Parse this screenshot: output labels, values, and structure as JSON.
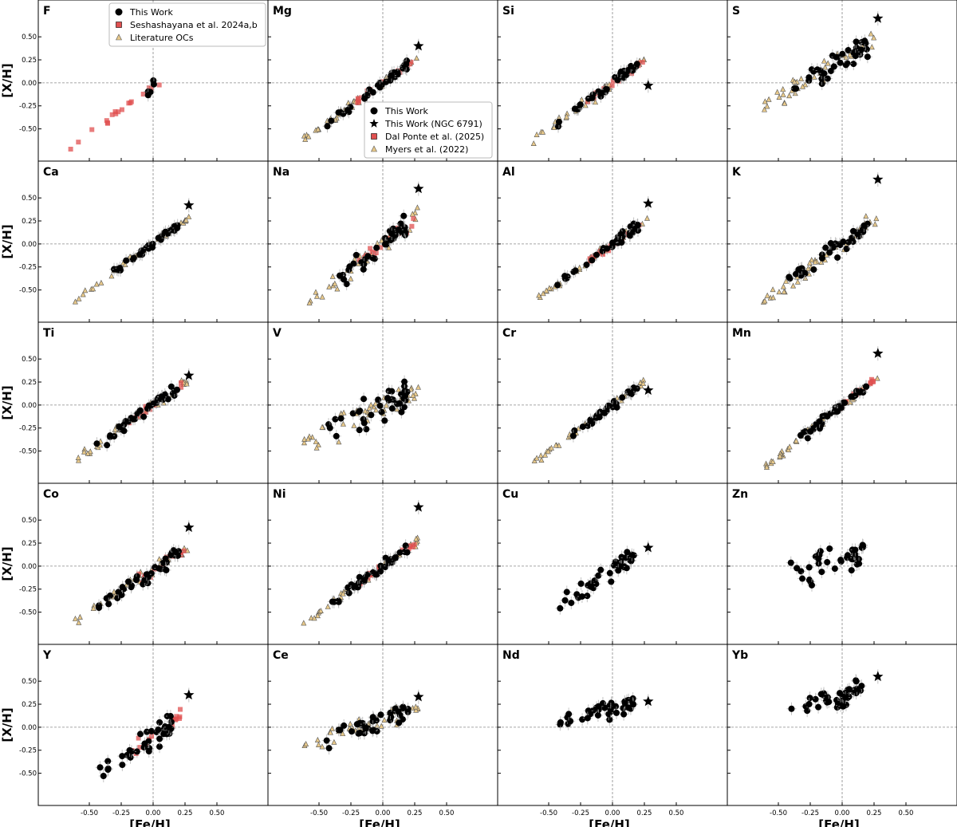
{
  "chart_data": {
    "type": "scatter",
    "xlabel": "[Fe/H]",
    "ylabel": "[X/H]",
    "xlim": [
      -0.9,
      0.9
    ],
    "ylim": [
      -0.85,
      0.9
    ],
    "xticks": [
      -0.5,
      -0.25,
      0.0,
      0.25,
      0.5
    ],
    "xtick_labels": [
      "-0.50",
      "-0.25",
      "0.00",
      "0.25",
      "0.50"
    ],
    "yticks": [
      0.5,
      0.25,
      0.0,
      -0.25,
      -0.5
    ],
    "ytick_labels": [
      "0.50",
      "0.25",
      "0.00",
      "-0.25",
      "-0.50"
    ],
    "colors": {
      "this_work": "#000000",
      "dal_ponte": "#e05050",
      "myers": "#e8c98a",
      "myers_edge": "#555555",
      "errorbar": "#aaaaaa"
    },
    "legend_a": {
      "location": "top-right of F panel",
      "entries": [
        "This Work",
        "Seshashayana et al. 2024a,b",
        "Literature OCs"
      ]
    },
    "legend_b": {
      "location": "bottom-right of Mg panel",
      "entries": [
        "This Work",
        "This Work (NGC 6791)",
        "Dal Ponte et al. (2025)",
        "Myers et al. (2022)"
      ]
    },
    "panels": [
      {
        "element": "F",
        "star": null,
        "slope": 1.0,
        "spread": 0.1,
        "offset": -0.05,
        "red": true,
        "myers": false,
        "black": true,
        "redrange": [
          -0.65,
          0.05
        ],
        "ntri": 6
      },
      {
        "element": "Mg",
        "star": [
          0.28,
          0.4
        ],
        "slope": 1.0,
        "spread": 0.05,
        "offset": 0.0,
        "red": true,
        "myers": true
      },
      {
        "element": "Si",
        "star": [
          0.28,
          -0.03
        ],
        "slope": 1.0,
        "spread": 0.06,
        "offset": 0.0,
        "red": true,
        "myers": true
      },
      {
        "element": "S",
        "star": [
          0.28,
          0.7
        ],
        "slope": 0.8,
        "spread": 0.15,
        "offset": 0.25,
        "red": false,
        "myers": true
      },
      {
        "element": "Ca",
        "star": [
          0.28,
          0.42
        ],
        "slope": 1.0,
        "spread": 0.04,
        "offset": 0.0,
        "red": false,
        "myers": true
      },
      {
        "element": "Na",
        "star": [
          0.28,
          0.6
        ],
        "slope": 1.1,
        "spread": 0.12,
        "offset": 0.0,
        "red": true,
        "myers": true
      },
      {
        "element": "Al",
        "star": [
          0.28,
          0.44
        ],
        "slope": 1.0,
        "spread": 0.05,
        "offset": 0.0,
        "red": true,
        "myers": true
      },
      {
        "element": "K",
        "star": [
          0.28,
          0.7
        ],
        "slope": 1.0,
        "spread": 0.1,
        "offset": 0.0,
        "red": false,
        "myers": true
      },
      {
        "element": "Ti",
        "star": [
          0.28,
          0.32
        ],
        "slope": 1.0,
        "spread": 0.07,
        "offset": 0.0,
        "red": true,
        "myers": true
      },
      {
        "element": "V",
        "star": null,
        "slope": 0.6,
        "spread": 0.18,
        "offset": 0.0,
        "red": false,
        "myers": true
      },
      {
        "element": "Cr",
        "star": [
          0.28,
          0.16
        ],
        "slope": 1.0,
        "spread": 0.04,
        "offset": 0.0,
        "red": false,
        "myers": true
      },
      {
        "element": "Mn",
        "star": [
          0.28,
          0.56
        ],
        "slope": 1.1,
        "spread": 0.05,
        "offset": 0.0,
        "red": true,
        "myers": true
      },
      {
        "element": "Co",
        "star": [
          0.28,
          0.42
        ],
        "slope": 0.9,
        "spread": 0.08,
        "offset": -0.05,
        "red": true,
        "myers": true
      },
      {
        "element": "Ni",
        "star": [
          0.28,
          0.64
        ],
        "slope": 1.0,
        "spread": 0.06,
        "offset": 0.0,
        "red": true,
        "myers": true
      },
      {
        "element": "Cu",
        "star": [
          0.28,
          0.2
        ],
        "slope": 1.0,
        "spread": 0.12,
        "offset": -0.05,
        "red": false,
        "myers": false
      },
      {
        "element": "Zn",
        "star": null,
        "slope": 0.5,
        "spread": 0.18,
        "offset": 0.1,
        "red": false,
        "myers": false
      },
      {
        "element": "Y",
        "star": [
          0.28,
          0.35
        ],
        "slope": 1.0,
        "spread": 0.15,
        "offset": -0.1,
        "red": true,
        "myers": false
      },
      {
        "element": "Ce",
        "star": [
          0.28,
          0.33
        ],
        "slope": 0.5,
        "spread": 0.12,
        "offset": 0.1,
        "red": false,
        "myers": true
      },
      {
        "element": "Nd",
        "star": [
          0.28,
          0.28
        ],
        "slope": 0.4,
        "spread": 0.1,
        "offset": 0.2,
        "red": false,
        "myers": false
      },
      {
        "element": "Yb",
        "star": [
          0.28,
          0.55
        ],
        "slope": 0.4,
        "spread": 0.12,
        "offset": 0.35,
        "red": false,
        "myers": false
      }
    ]
  }
}
